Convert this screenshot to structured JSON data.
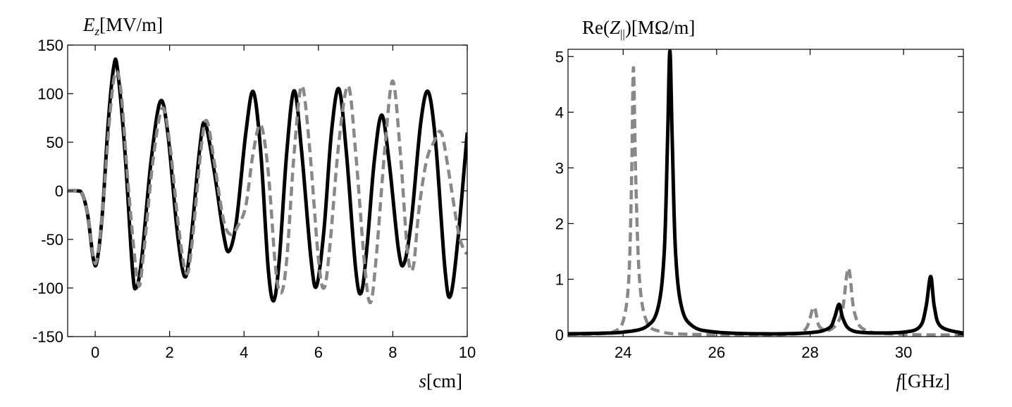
{
  "chart_data": [
    {
      "type": "line",
      "ylabel": [
        "E",
        "z",
        "[MV/m]"
      ],
      "xlabel": [
        "s",
        "[cm]"
      ],
      "xlim": [
        -0.74,
        10
      ],
      "ylim": [
        -150,
        150
      ],
      "xticks": [
        0,
        2,
        4,
        6,
        8,
        10
      ],
      "yticks": [
        -150,
        -100,
        -50,
        0,
        50,
        100,
        150
      ],
      "grid": false,
      "series": [
        {
          "color": "#000000",
          "dash": false,
          "x": [
            -0.74,
            -0.5,
            -0.35,
            -0.2,
            -0.05,
            0.05,
            0.2,
            0.35,
            0.5,
            0.6,
            0.8,
            1.0,
            1.1,
            1.25,
            1.5,
            1.75,
            1.95,
            2.2,
            2.4,
            2.55,
            2.8,
            2.95,
            3.2,
            3.45,
            3.6,
            3.8,
            4.05,
            4.25,
            4.45,
            4.65,
            4.8,
            4.95,
            5.15,
            5.35,
            5.55,
            5.8,
            5.95,
            6.15,
            6.35,
            6.55,
            6.75,
            7.0,
            7.15,
            7.3,
            7.5,
            7.7,
            7.9,
            8.15,
            8.3,
            8.5,
            8.75,
            8.95,
            9.15,
            9.4,
            9.55,
            9.75,
            10
          ],
          "values": [
            0,
            0,
            -3,
            -25,
            -70,
            -72,
            -20,
            70,
            128,
            125,
            40,
            -80,
            -100,
            -70,
            30,
            92,
            60,
            -40,
            -88,
            -60,
            40,
            70,
            20,
            -45,
            -62,
            -30,
            60,
            102,
            40,
            -80,
            -113,
            -70,
            40,
            103,
            40,
            -70,
            -98,
            -40,
            60,
            105,
            40,
            -80,
            -105,
            -60,
            30,
            78,
            30,
            -60,
            -75,
            -30,
            70,
            102,
            50,
            -80,
            -108,
            -50,
            60
          ]
        },
        {
          "color": "#888888",
          "dash": true,
          "x": [
            -0.74,
            -0.5,
            -0.35,
            -0.2,
            -0.05,
            0.05,
            0.2,
            0.4,
            0.55,
            0.7,
            0.9,
            1.15,
            1.3,
            1.55,
            1.8,
            2.0,
            2.25,
            2.45,
            2.6,
            2.85,
            3.0,
            3.2,
            3.45,
            3.65,
            3.85,
            4.05,
            4.25,
            4.45,
            4.65,
            4.85,
            5.0,
            5.15,
            5.35,
            5.55,
            5.75,
            6.0,
            6.15,
            6.3,
            6.55,
            6.8,
            7.0,
            7.25,
            7.4,
            7.55,
            7.8,
            8.0,
            8.2,
            8.4,
            8.55,
            8.7,
            8.9,
            9.1,
            9.3,
            9.5,
            9.75,
            9.9,
            10
          ],
          "values": [
            0,
            0,
            -3,
            -25,
            -68,
            -70,
            -20,
            80,
            122,
            100,
            0,
            -95,
            -65,
            30,
            85,
            50,
            -40,
            -85,
            -55,
            45,
            72,
            30,
            -30,
            -45,
            -35,
            -15,
            40,
            68,
            20,
            -80,
            -105,
            -70,
            40,
            108,
            50,
            -70,
            -100,
            -60,
            50,
            108,
            40,
            -80,
            -115,
            -70,
            50,
            113,
            40,
            -65,
            -78,
            -20,
            30,
            50,
            60,
            20,
            -40,
            -60,
            -65
          ]
        }
      ]
    },
    {
      "type": "line",
      "ylabel": [
        "Re(",
        "Z",
        "||",
        ")[MΩ/m]"
      ],
      "xlabel": [
        "f",
        "[GHz]"
      ],
      "xlim": [
        22.82,
        31.28
      ],
      "ylim": [
        -0.03,
        5.13
      ],
      "xticks": [
        24,
        26,
        28,
        30
      ],
      "yticks": [
        0,
        1,
        2,
        3,
        4,
        5
      ],
      "grid": false,
      "series": [
        {
          "color": "#888888",
          "dash": true,
          "x": [
            22.82,
            23.5,
            23.8,
            24.0,
            24.12,
            24.18,
            24.22,
            24.27,
            24.35,
            24.5,
            24.8,
            25.5,
            27.5,
            27.9,
            28.08,
            28.2,
            28.45,
            28.68,
            28.82,
            28.95,
            29.2,
            30,
            31.28
          ],
          "values": [
            0.01,
            0.02,
            0.06,
            0.25,
            1.0,
            2.8,
            4.8,
            2.8,
            1.0,
            0.25,
            0.06,
            0.01,
            0.01,
            0.1,
            0.5,
            0.15,
            0.1,
            0.4,
            1.2,
            0.4,
            0.08,
            0.01,
            0
          ]
        },
        {
          "color": "#000000",
          "dash": false,
          "x": [
            22.82,
            23.5,
            24.0,
            24.5,
            24.75,
            24.88,
            24.95,
            25.0,
            25.05,
            25.12,
            25.25,
            25.5,
            26,
            27,
            28,
            28.4,
            28.52,
            28.62,
            28.7,
            28.85,
            29.2,
            30,
            30.35,
            30.48,
            30.58,
            30.66,
            30.8,
            31.28
          ],
          "values": [
            0.02,
            0.03,
            0.05,
            0.15,
            0.5,
            1.5,
            3.5,
            5.1,
            3.5,
            1.5,
            0.5,
            0.15,
            0.05,
            0.02,
            0.04,
            0.12,
            0.3,
            0.55,
            0.3,
            0.1,
            0.04,
            0.05,
            0.15,
            0.5,
            1.05,
            0.5,
            0.15,
            0.03
          ]
        }
      ]
    }
  ]
}
